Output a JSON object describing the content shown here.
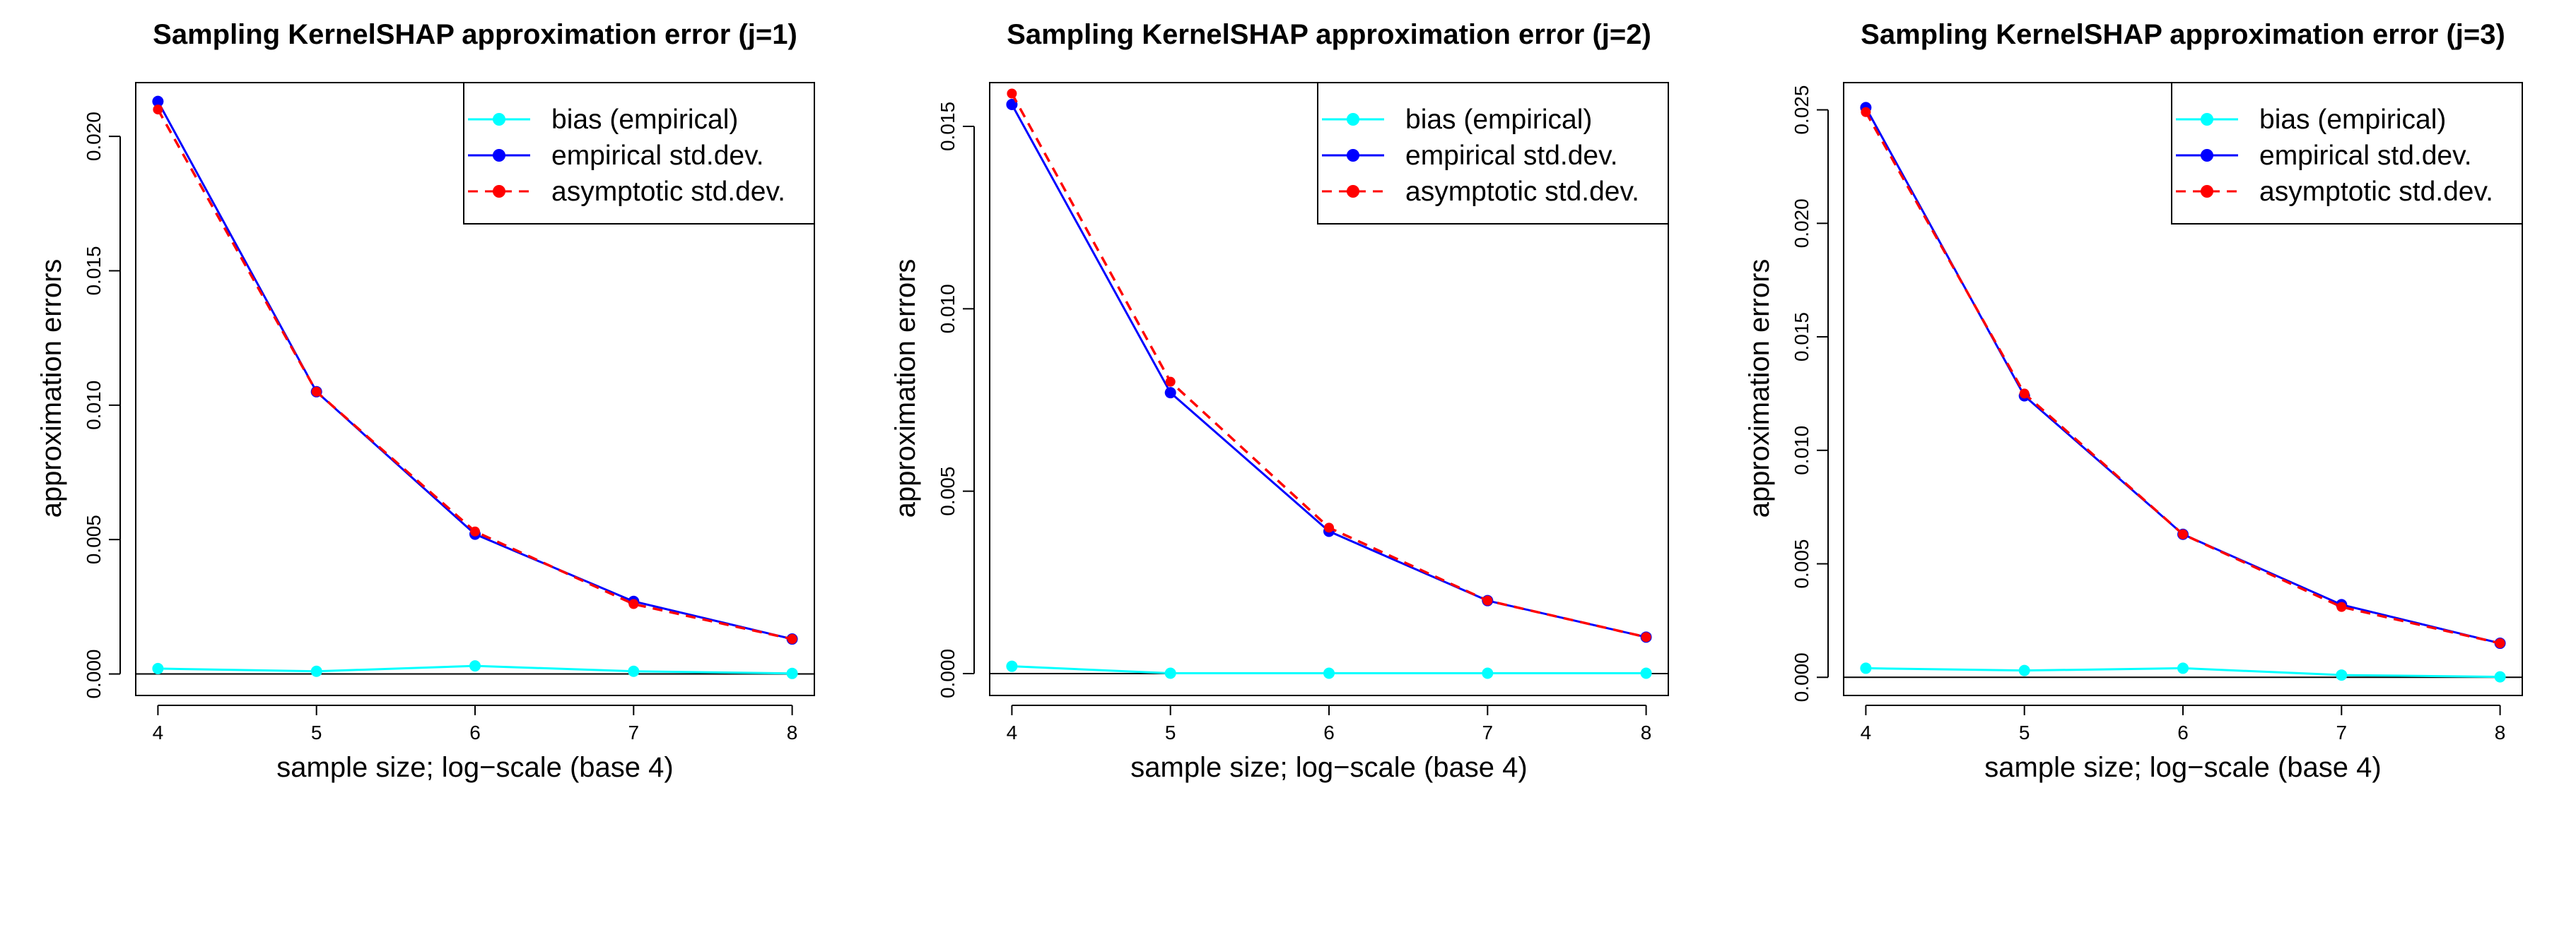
{
  "colors": {
    "bias": "#00FFFF",
    "empirical": "#0000FF",
    "asymptotic": "#FF0000",
    "axis": "#000000",
    "background": "#FFFFFF"
  },
  "chart_data": [
    {
      "type": "line",
      "title": "Sampling KernelSHAP approximation error (j=1)",
      "xlabel": "sample size; log−scale (base 4)",
      "ylabel": "approximation errors",
      "x": [
        4,
        5,
        6,
        7,
        8
      ],
      "xticks": [
        "4",
        "5",
        "6",
        "7",
        "8"
      ],
      "yticks": [
        "0.000",
        "0.005",
        "0.010",
        "0.015",
        "0.020"
      ],
      "ylim": [
        -0.0008,
        0.022
      ],
      "xlim": [
        3.86,
        8.14
      ],
      "zero_line": true,
      "legend_position": "top-right",
      "grid": false,
      "series": [
        {
          "name": "bias (empirical)",
          "key": "bias",
          "style": "solid",
          "values": [
            0.0002,
            0.0001,
            0.0003,
            0.0001,
            2e-05
          ]
        },
        {
          "name": "empirical std.dev.",
          "key": "empirical",
          "style": "solid",
          "values": [
            0.0213,
            0.0105,
            0.0052,
            0.0027,
            0.0013
          ]
        },
        {
          "name": "asymptotic std.dev.",
          "key": "asymptotic",
          "style": "dashed",
          "values": [
            0.021,
            0.0105,
            0.0053,
            0.0026,
            0.0013
          ]
        }
      ]
    },
    {
      "type": "line",
      "title": "Sampling KernelSHAP approximation error (j=2)",
      "xlabel": "sample size; log−scale (base 4)",
      "ylabel": "approximation errors",
      "x": [
        4,
        5,
        6,
        7,
        8
      ],
      "xticks": [
        "4",
        "5",
        "6",
        "7",
        "8"
      ],
      "yticks": [
        "0.000",
        "0.005",
        "0.010",
        "0.015"
      ],
      "ylim": [
        -0.0006,
        0.0162
      ],
      "xlim": [
        3.86,
        8.14
      ],
      "zero_line": true,
      "legend_position": "top-right",
      "grid": false,
      "series": [
        {
          "name": "bias (empirical)",
          "key": "bias",
          "style": "solid",
          "values": [
            0.0002,
            1e-05,
            1e-05,
            1e-05,
            1e-05
          ]
        },
        {
          "name": "empirical std.dev.",
          "key": "empirical",
          "style": "solid",
          "values": [
            0.0156,
            0.0077,
            0.0039,
            0.002,
            0.001
          ]
        },
        {
          "name": "asymptotic std.dev.",
          "key": "asymptotic",
          "style": "dashed",
          "values": [
            0.0159,
            0.008,
            0.004,
            0.002,
            0.001
          ]
        }
      ]
    },
    {
      "type": "line",
      "title": "Sampling KernelSHAP approximation error (j=3)",
      "xlabel": "sample size; log−scale (base 4)",
      "ylabel": "approximation errors",
      "x": [
        4,
        5,
        6,
        7,
        8
      ],
      "xticks": [
        "4",
        "5",
        "6",
        "7",
        "8"
      ],
      "yticks": [
        "0.000",
        "0.005",
        "0.010",
        "0.015",
        "0.020",
        "0.025"
      ],
      "ylim": [
        -0.0008,
        0.0262
      ],
      "xlim": [
        3.86,
        8.14
      ],
      "zero_line": true,
      "legend_position": "top-right",
      "grid": false,
      "series": [
        {
          "name": "bias (empirical)",
          "key": "bias",
          "style": "solid",
          "values": [
            0.0004,
            0.0003,
            0.0004,
            0.0001,
            2e-05
          ]
        },
        {
          "name": "empirical std.dev.",
          "key": "empirical",
          "style": "solid",
          "values": [
            0.0251,
            0.0124,
            0.0063,
            0.0032,
            0.0015
          ]
        },
        {
          "name": "asymptotic std.dev.",
          "key": "asymptotic",
          "style": "dashed",
          "values": [
            0.0249,
            0.0125,
            0.0063,
            0.0031,
            0.0015
          ]
        }
      ]
    }
  ]
}
